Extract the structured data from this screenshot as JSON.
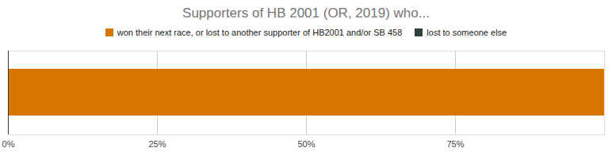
{
  "chart_data": {
    "type": "bar",
    "title": "Supporters of HB 2001 (OR, 2019) who...",
    "orientation": "horizontal",
    "stacked": true,
    "legend": "top",
    "grid": true,
    "categories": [
      null
    ],
    "series": [
      {
        "name": "won their next race, or lost to another supporter of HB2001 and/or SB 458",
        "color": "#d67500",
        "values": [
          100
        ]
      },
      {
        "name": "lost to someone else",
        "color": "#2b4238",
        "values": [
          0
        ]
      }
    ],
    "xlim": [
      0,
      100
    ],
    "xticks": [
      {
        "value": 0,
        "label": "0%"
      },
      {
        "value": 25,
        "label": "25%"
      },
      {
        "value": 50,
        "label": "50%"
      },
      {
        "value": 75,
        "label": "75%"
      }
    ]
  }
}
